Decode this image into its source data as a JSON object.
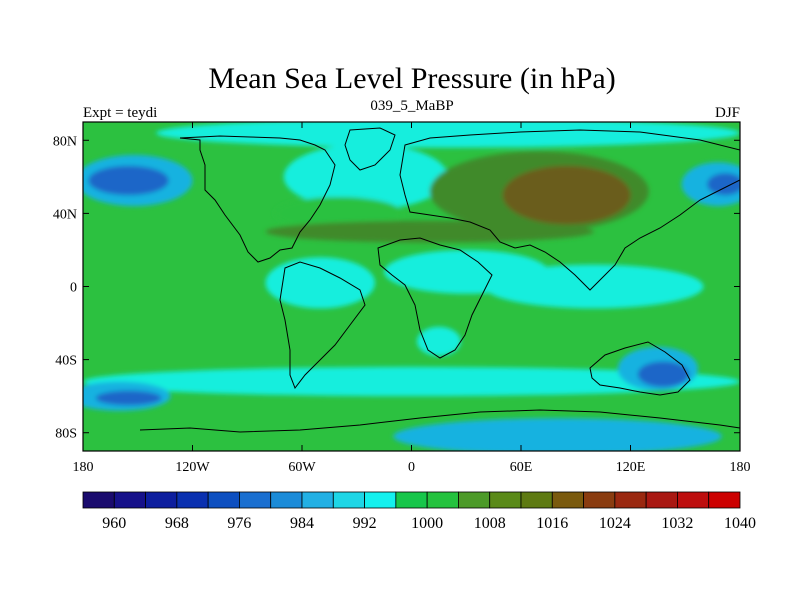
{
  "chart_data": {
    "type": "heatmap",
    "title": "Mean Sea Level Pressure (in hPa)",
    "subtitle_left": "Expt = teydi",
    "subtitle_center": "039_5_MaBP",
    "subtitle_right": "DJF",
    "xlim": [
      -180,
      180
    ],
    "ylim": [
      -90,
      90
    ],
    "x_ticks": [
      {
        "value": -180,
        "label": "180"
      },
      {
        "value": -120,
        "label": "120W"
      },
      {
        "value": -60,
        "label": "60W"
      },
      {
        "value": 0,
        "label": "0"
      },
      {
        "value": 60,
        "label": "60E"
      },
      {
        "value": 120,
        "label": "120E"
      },
      {
        "value": 180,
        "label": "180"
      }
    ],
    "y_ticks": [
      {
        "value": 80,
        "label": "80N"
      },
      {
        "value": 40,
        "label": "40N"
      },
      {
        "value": 0,
        "label": "0"
      },
      {
        "value": -40,
        "label": "40S"
      },
      {
        "value": -80,
        "label": "80S"
      }
    ],
    "colorbar": {
      "levels": [
        960,
        964,
        968,
        972,
        976,
        980,
        984,
        988,
        992,
        996,
        1000,
        1004,
        1008,
        1012,
        1016,
        1020,
        1024,
        1028,
        1032,
        1036,
        1040
      ],
      "label_levels": [
        960,
        968,
        976,
        984,
        992,
        1000,
        1008,
        1016,
        1024,
        1032,
        1040
      ],
      "colors": [
        "#1a0b6e",
        "#16118a",
        "#0d1e9e",
        "#0a30b0",
        "#0d4fc0",
        "#1a6fd0",
        "#1b8bd8",
        "#22b0e4",
        "#1ed6e6",
        "#14f0ee",
        "#17c64a",
        "#24c23e",
        "#4c9a28",
        "#5a8a18",
        "#5e7a12",
        "#7a5a0e",
        "#8a3c10",
        "#9a2810",
        "#a91812",
        "#bd0e0e",
        "#cc0000"
      ]
    },
    "field_colors": {
      "green": "#2cc140",
      "cyan": "#13eedd",
      "olive": "#3f8a29",
      "brown": "#6b5d1b",
      "sky": "#19b2e0",
      "blue": "#1a66c8",
      "land": "#19e4e8"
    },
    "regions": [
      {
        "name": "north-polar-cyan",
        "color": "cyan",
        "lat": 84,
        "lon": 20,
        "rlat": 8,
        "rlon": 160
      },
      {
        "name": "subpolar-low-pacific",
        "color": "sky",
        "lat": 58,
        "lon": -152,
        "rlat": 14,
        "rlon": 32
      },
      {
        "name": "aleutian-low",
        "color": "blue",
        "lat": 58,
        "lon": -155,
        "rlat": 8,
        "rlon": 22
      },
      {
        "name": "iceland-region",
        "color": "cyan",
        "lat": 60,
        "lon": -25,
        "rlat": 18,
        "rlon": 45
      },
      {
        "name": "north-atlantic-green",
        "color": "green",
        "lat": 40,
        "lon": -40,
        "rlat": 9,
        "rlon": 35
      },
      {
        "name": "north-pacific-east-low",
        "color": "sky",
        "lat": 56,
        "lon": 168,
        "rlat": 12,
        "rlon": 20
      },
      {
        "name": "north-pacific-east-core",
        "color": "blue",
        "lat": 56,
        "lon": 172,
        "rlat": 6,
        "rlon": 10
      },
      {
        "name": "siberian-high-olive",
        "color": "olive",
        "lat": 52,
        "lon": 70,
        "rlat": 22,
        "rlon": 60
      },
      {
        "name": "siberian-high-core",
        "color": "brown",
        "lat": 50,
        "lon": 85,
        "rlat": 16,
        "rlon": 35
      },
      {
        "name": "subtropical-ridge",
        "color": "olive",
        "lat": 30,
        "lon": 10,
        "rlat": 6,
        "rlon": 90
      },
      {
        "name": "tropical-band-americas",
        "color": "cyan",
        "lat": 2,
        "lon": -50,
        "rlat": 14,
        "rlon": 30
      },
      {
        "name": "tropical-band-africa",
        "color": "cyan",
        "lat": 8,
        "lon": 30,
        "rlat": 12,
        "rlon": 45
      },
      {
        "name": "tropical-band-asia",
        "color": "cyan",
        "lat": 0,
        "lon": 100,
        "rlat": 12,
        "rlon": 60
      },
      {
        "name": "south-ocean-band",
        "color": "cyan",
        "lat": -52,
        "lon": 0,
        "rlat": 8,
        "rlon": 180
      },
      {
        "name": "southern-low-west",
        "color": "sky",
        "lat": -60,
        "lon": -160,
        "rlat": 8,
        "rlon": 28
      },
      {
        "name": "southern-low-west-core",
        "color": "blue",
        "lat": -61,
        "lon": -155,
        "rlat": 4,
        "rlon": 18
      },
      {
        "name": "antarctic-sky",
        "color": "sky",
        "lat": -82,
        "lon": 80,
        "rlat": 10,
        "rlon": 90
      },
      {
        "name": "australia-sky",
        "color": "sky",
        "lat": -45,
        "lon": 135,
        "rlat": 12,
        "rlon": 22
      },
      {
        "name": "australia-core",
        "color": "blue",
        "lat": -48,
        "lon": 138,
        "rlat": 7,
        "rlon": 14
      },
      {
        "name": "south-atlantic-cyan",
        "color": "cyan",
        "lat": -30,
        "lon": 15,
        "rlat": 8,
        "rlon": 12
      }
    ]
  }
}
